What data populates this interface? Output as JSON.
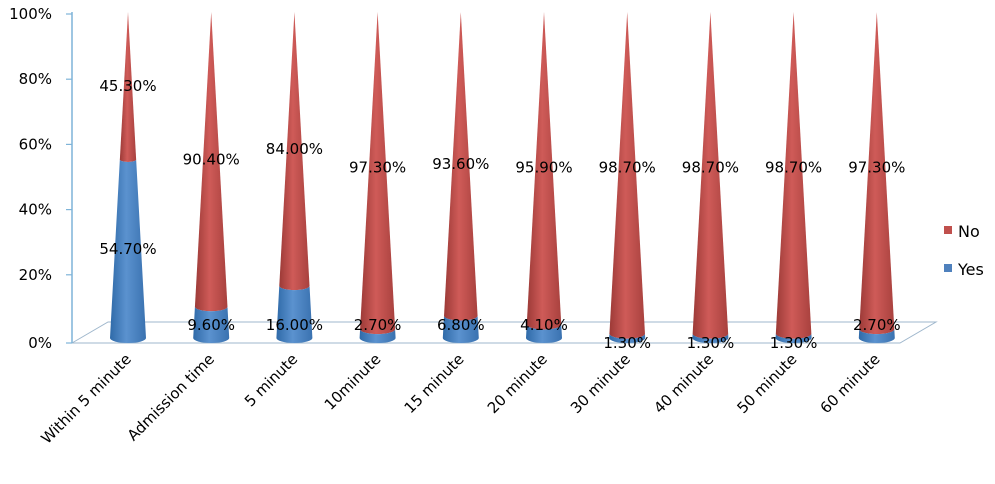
{
  "chart_data": {
    "type": "bar",
    "style": "3d-cone-stacked-100",
    "categories": [
      "Within 5 minute",
      "Admission time",
      "5 minute",
      "10minute",
      "15 minute",
      "20 minute",
      "30 minute",
      "40 minute",
      "50 minute",
      "60 minute"
    ],
    "series": [
      {
        "name": "Yes",
        "color": "#4f81bd",
        "values": [
          54.7,
          9.6,
          16.0,
          2.7,
          6.8,
          4.1,
          1.3,
          1.3,
          1.3,
          2.7
        ],
        "labels": [
          "54.70%",
          "9.60%",
          "16.00%",
          "2.70%",
          "6.80%",
          "4.10%",
          "1.30%",
          "1.30%",
          "1.30%",
          "2.70%"
        ]
      },
      {
        "name": "No",
        "color": "#c0504d",
        "values": [
          45.3,
          90.4,
          84.0,
          97.3,
          93.6,
          95.9,
          98.7,
          98.7,
          98.7,
          97.3
        ],
        "labels": [
          "45.30%",
          "90.40%",
          "84.00%",
          "97.30%",
          "93.60%",
          "95.90%",
          "98.70%",
          "98.70%",
          "98.70%",
          "97.30%"
        ]
      }
    ],
    "yticks": [
      "0%",
      "20%",
      "40%",
      "60%",
      "80%",
      "100%"
    ],
    "ylim": [
      0,
      100
    ],
    "grid": false,
    "legend": "right"
  }
}
